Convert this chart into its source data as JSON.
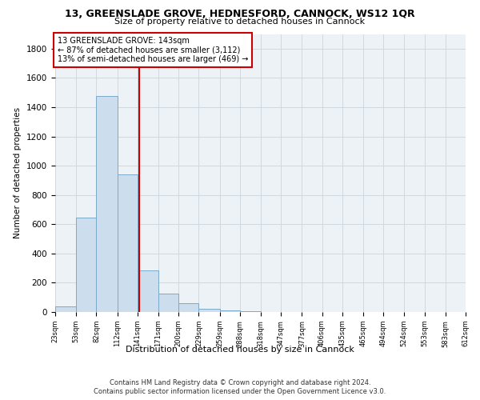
{
  "title_line1": "13, GREENSLADE GROVE, HEDNESFORD, CANNOCK, WS12 1QR",
  "title_line2": "Size of property relative to detached houses in Cannock",
  "xlabel": "Distribution of detached houses by size in Cannock",
  "ylabel": "Number of detached properties",
  "vline_x": 143,
  "annotation_line1": "13 GREENSLADE GROVE: 143sqm",
  "annotation_line2": "← 87% of detached houses are smaller (3,112)",
  "annotation_line3": "13% of semi-detached houses are larger (469) →",
  "footer_line1": "Contains HM Land Registry data © Crown copyright and database right 2024.",
  "footer_line2": "Contains public sector information licensed under the Open Government Licence v3.0.",
  "bin_edges": [
    23,
    53,
    82,
    112,
    141,
    171,
    200,
    229,
    259,
    288,
    318,
    347,
    377,
    406,
    435,
    465,
    494,
    524,
    553,
    583,
    612
  ],
  "bin_counts": [
    38,
    645,
    1474,
    938,
    284,
    128,
    62,
    22,
    13,
    4,
    2,
    1,
    0,
    0,
    0,
    0,
    0,
    0,
    0,
    0
  ],
  "bar_color": "#ccdded",
  "bar_edge_color": "#7aaac8",
  "vline_color": "#cc0000",
  "grid_color": "#d0d8e0",
  "background_color": "#edf2f7",
  "annotation_box_color": "#ffffff",
  "annotation_box_edge": "#cc0000",
  "ylim": [
    0,
    1900
  ],
  "yticks": [
    0,
    200,
    400,
    600,
    800,
    1000,
    1200,
    1400,
    1600,
    1800
  ]
}
